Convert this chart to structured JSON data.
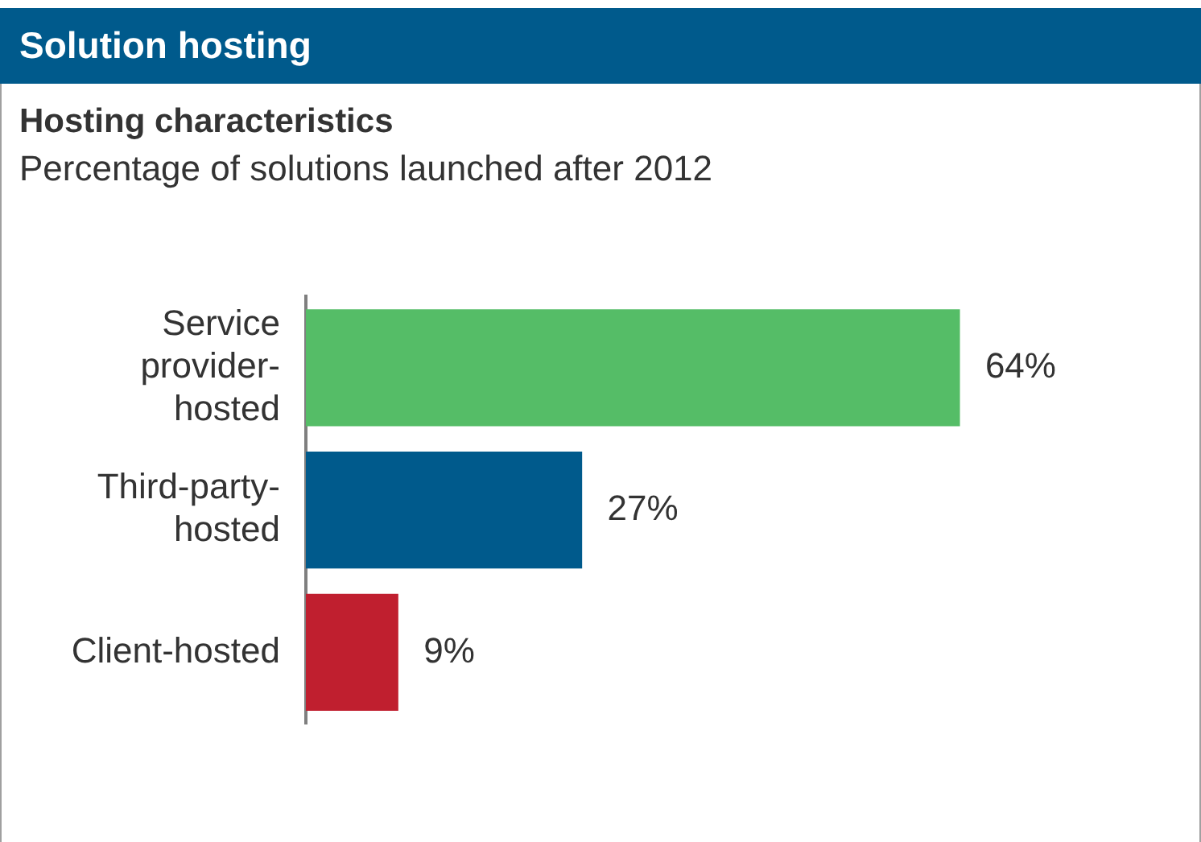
{
  "chart_data": {
    "type": "bar",
    "orientation": "horizontal",
    "title": "Solution hosting",
    "subtitle": "Hosting characteristics",
    "annotations": [
      "Percentage of solutions launched after 2012"
    ],
    "categories": [
      "Service provider-hosted",
      "Third-party-hosted",
      "Client-hosted"
    ],
    "values": [
      64,
      27,
      9
    ],
    "colors": [
      "#55bd67",
      "#005a8c",
      "#c01f2f"
    ],
    "value_labels": [
      "64%",
      "27%",
      "9%"
    ],
    "legend": false
  }
}
